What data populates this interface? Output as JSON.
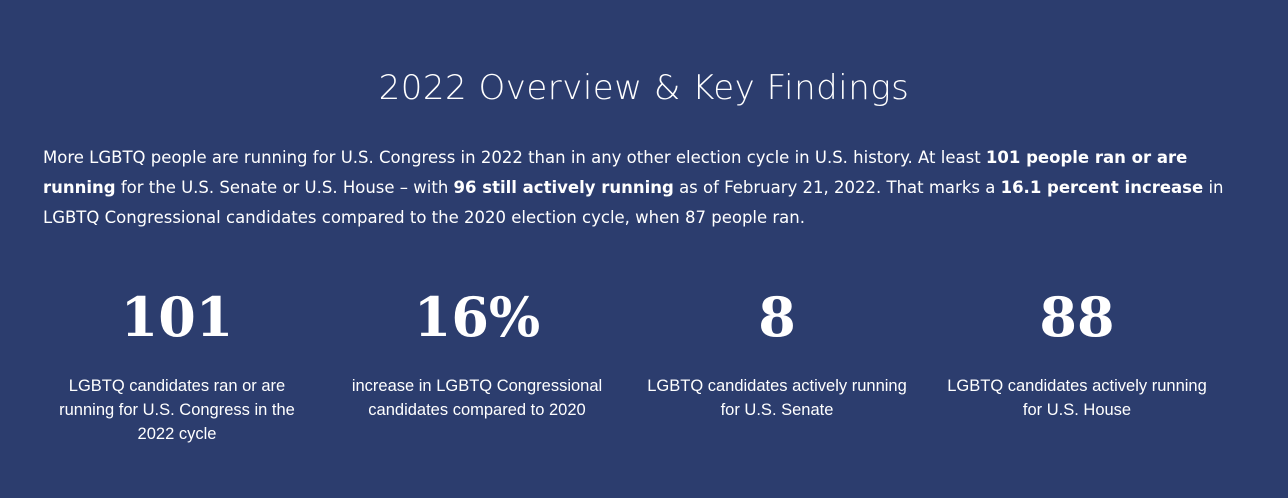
{
  "title": "2022 Overview & Key Findings",
  "intro": {
    "t1": "More LGBTQ people are running for U.S. Congress in 2022 than in any other election cycle in U.S. history. At least ",
    "b1": "101 people ran or are running",
    "t2": " for the U.S. Senate or U.S. House – with ",
    "b2": "96 still actively running",
    "t3": " as of February 21, 2022. That marks a ",
    "b3": "16.1 percent increase",
    "t4": " in LGBTQ Congressional candidates compared to the 2020 election cycle, when 87 people ran."
  },
  "stats": [
    {
      "value": "101",
      "label": "LGBTQ candidates ran or are running for U.S. Congress in the 2022 cycle"
    },
    {
      "value": "16%",
      "label": "increase in LGBTQ Congressional candidates compared to 2020"
    },
    {
      "value": "8",
      "label": "LGBTQ candidates actively running for U.S. Senate"
    },
    {
      "value": "88",
      "label": "LGBTQ candidates actively running for U.S. House"
    }
  ]
}
